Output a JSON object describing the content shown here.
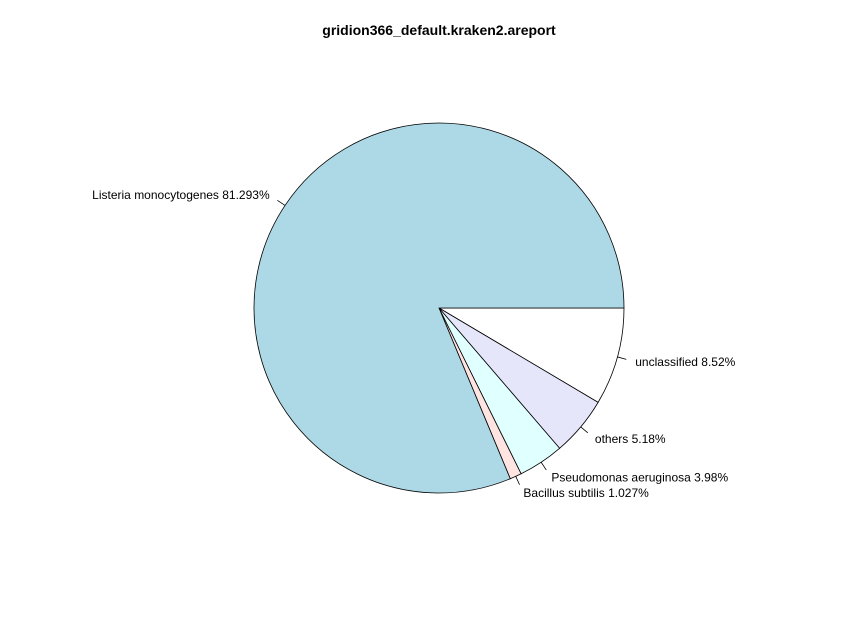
{
  "chart_data": {
    "type": "pie",
    "title": "gridion366_default.kraken2.areport",
    "slices": [
      {
        "name": "unclassified",
        "value": 8.52,
        "label": "unclassified 8.52%",
        "color": "#ffffff"
      },
      {
        "name": "others",
        "value": 5.18,
        "label": "others 5.18%",
        "color": "#e6e6fa"
      },
      {
        "name": "Pseudomonas aeruginosa",
        "value": 3.98,
        "label": "Pseudomonas aeruginosa 3.98%",
        "color": "#e0ffff"
      },
      {
        "name": "Bacillus subtilis",
        "value": 1.027,
        "label": "Bacillus subtilis 1.027%",
        "color": "#ffe4e1"
      },
      {
        "name": "Listeria monocytogenes",
        "value": 81.293,
        "label": "Listeria monocytogenes 81.293%",
        "color": "#add8e6"
      }
    ],
    "start_angle_deg": 0,
    "direction": "clockwise",
    "legend": "none"
  }
}
